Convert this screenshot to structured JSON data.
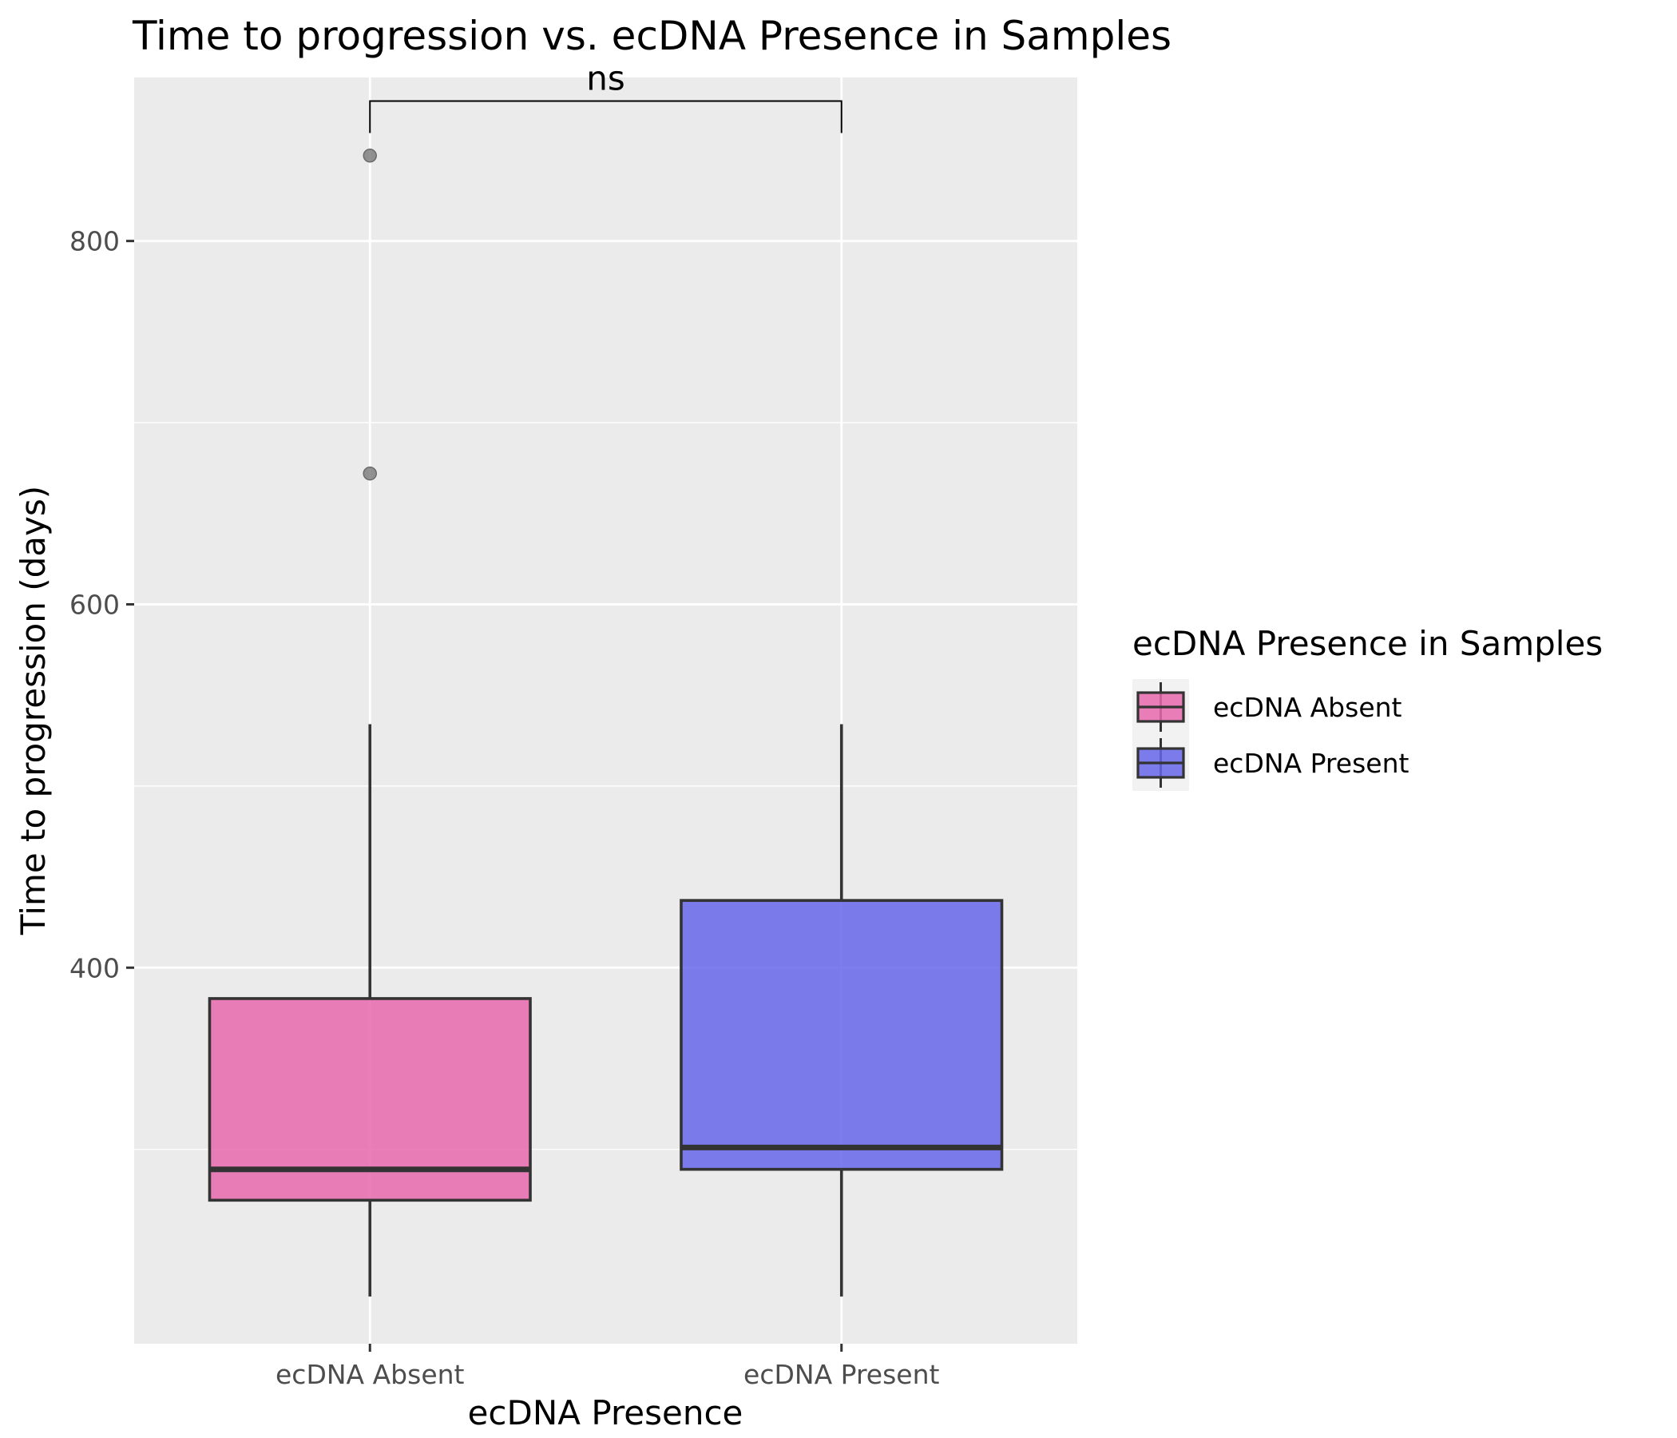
{
  "chart_data": {
    "type": "box",
    "title": "Time to progression vs. ecDNA Presence in Samples",
    "xlabel": "ecDNA Presence",
    "ylabel": "Time to progression (days)",
    "ylim": [
      193,
      890
    ],
    "yticks": [
      400,
      600,
      800
    ],
    "grid": true,
    "categories": [
      "ecDNA Absent",
      "ecDNA Present"
    ],
    "series": [
      {
        "category": "ecDNA Absent",
        "whisker_low": 219,
        "q1": 272,
        "median": 289,
        "q3": 383,
        "whisker_high": 534,
        "outliers": [
          672,
          847
        ],
        "color": "#e869ad"
      },
      {
        "category": "ecDNA Present",
        "whisker_low": 219,
        "q1": 289,
        "median": 301,
        "q3": 437,
        "whisker_high": 534,
        "outliers": [],
        "color": "#6666ea"
      }
    ],
    "annotation": {
      "label": "ns",
      "between": [
        "ecDNA Absent",
        "ecDNA Present"
      ],
      "y": 877
    },
    "legend": {
      "title": "ecDNA Presence in Samples",
      "placement": "right",
      "items": [
        {
          "label": "ecDNA Absent",
          "color": "#e869ad"
        },
        {
          "label": "ecDNA Present",
          "color": "#6666ea"
        }
      ]
    },
    "colors": {
      "panel_bg": "#ebebeb",
      "grid": "#ffffff",
      "box_outline": "#333333",
      "outlier": "#808080"
    }
  }
}
